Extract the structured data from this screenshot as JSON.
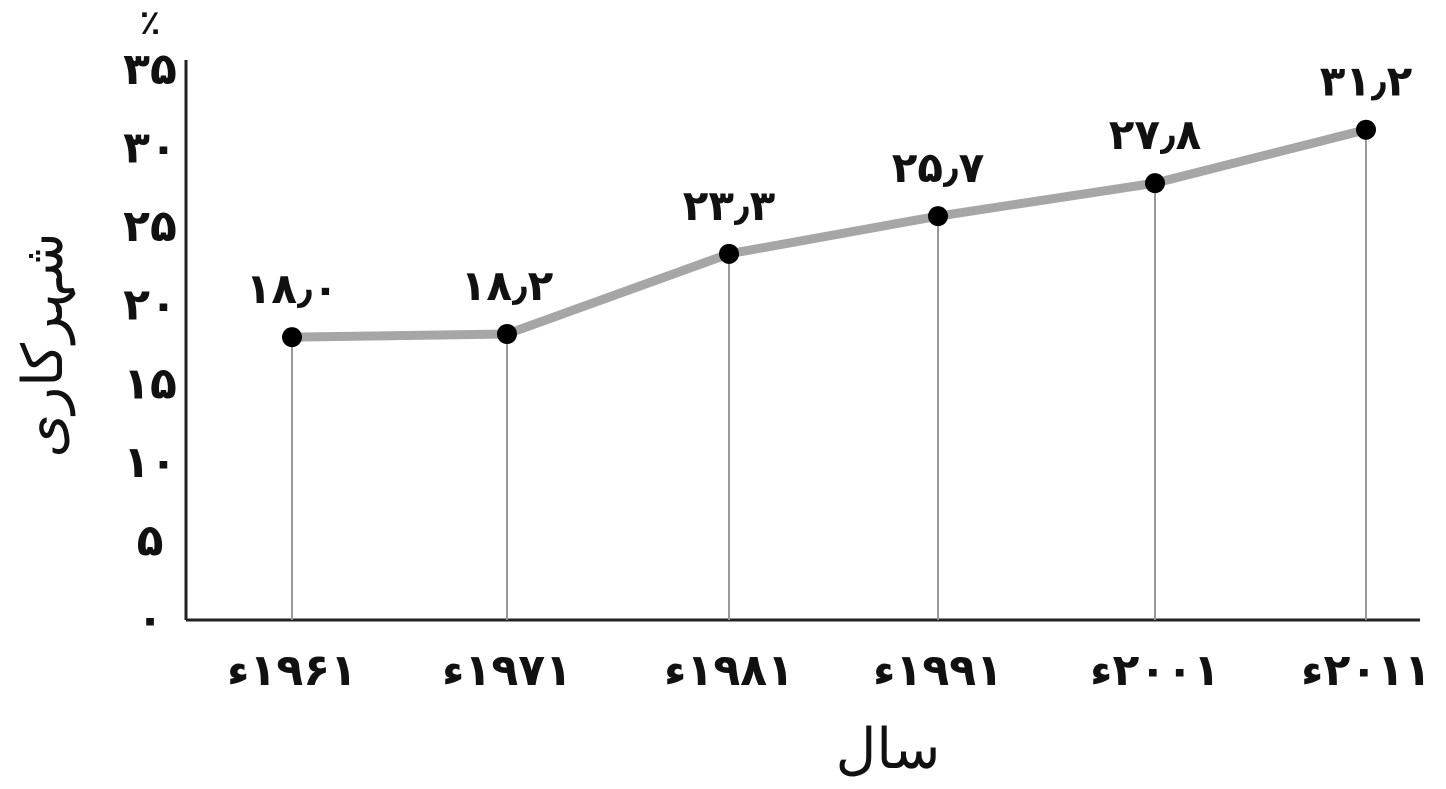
{
  "chart_data": {
    "type": "line",
    "title": "",
    "xlabel": "سال",
    "ylabel": "شہرکاری",
    "y_unit": "٪",
    "ylim": [
      0,
      35
    ],
    "y_ticks": [
      0,
      5,
      10,
      15,
      20,
      25,
      30,
      35
    ],
    "y_tick_labels": [
      "۰",
      "۵",
      "۱۰",
      "۱۵",
      "۲۰",
      "۲۵",
      "۳۰",
      "۳۵"
    ],
    "categories": [
      "۱۹۶۱ء",
      "۱۹۷۱ء",
      "۱۹۸۱ء",
      "۱۹۹۱ء",
      "۲۰۰۱ء",
      "۲۰۱۱ء"
    ],
    "x": [
      1961,
      1971,
      1981,
      1991,
      2001,
      2011
    ],
    "values": [
      18.0,
      18.2,
      23.3,
      25.7,
      27.8,
      31.2
    ],
    "data_labels": [
      "۱۸٫۰",
      "۱۸٫۲",
      "۲۳٫۳",
      "۲۵٫۷",
      "۲۷٫۸",
      "۳۱٫۲"
    ],
    "line_color": "#a6a6a6",
    "marker_color": "#000000",
    "drop_line_color": "#999999",
    "grid": false
  }
}
